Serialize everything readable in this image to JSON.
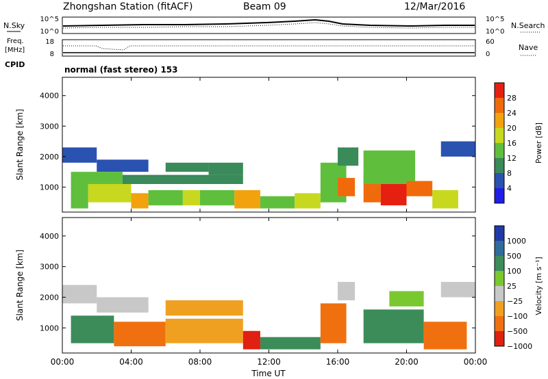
{
  "header": {
    "title": "Zhongshan Station (fitACF)",
    "beam": "Beam 09",
    "date": "12/Mar/2016",
    "cpid_label": "CPID",
    "cpid_value": "normal (fast stereo) 153"
  },
  "top_panels": {
    "nsky_label": "N.Sky",
    "nsky_ticks": [
      "10^5",
      "10^0"
    ],
    "nsearch_label": "N.Search",
    "nsearch_ticks": [
      "10^5",
      "10^0"
    ],
    "freq_label_line1": "Freq.",
    "freq_label_line2": "[MHz]",
    "freq_ticks": [
      "18",
      "8"
    ],
    "nave_label": "Nave",
    "nave_ticks": [
      "60",
      "0"
    ]
  },
  "colors": {
    "power": [
      "#1f1fe6",
      "#2a52b0",
      "#3a8a5a",
      "#5fbf3c",
      "#c8d81e",
      "#f2a20c",
      "#f06a0c",
      "#e62010"
    ],
    "velocity": [
      "#1f3aa8",
      "#2e6c9a",
      "#3c8c5a",
      "#7ac830",
      "#c8c8c8",
      "#f0a020",
      "#f07010",
      "#e02010"
    ]
  },
  "chart_data": [
    {
      "type": "heatmap",
      "title": "Power",
      "ylabel": "Slant Range [km]",
      "ylim": [
        180,
        4600
      ],
      "yticks": [
        "1000",
        "2000",
        "3000",
        "4000"
      ],
      "xlabel": "",
      "colorbar_label": "Power [dB]",
      "colorbar_ticks": [
        "4",
        "8",
        "12",
        "16",
        "20",
        "24",
        "28"
      ],
      "color_range": [
        0,
        32
      ],
      "cells": [
        {
          "t0": 0.0,
          "t1": 2.0,
          "r0": 1800,
          "r1": 2300,
          "v": 7
        },
        {
          "t0": 2.0,
          "t1": 5.0,
          "r0": 1500,
          "r1": 1900,
          "v": 7
        },
        {
          "t0": 6.0,
          "t1": 8.5,
          "r0": 1500,
          "r1": 1800,
          "v": 8
        },
        {
          "t0": 8.5,
          "t1": 10.5,
          "r0": 1400,
          "r1": 1800,
          "v": 8
        },
        {
          "t0": 0.5,
          "t1": 3.5,
          "r0": 1100,
          "r1": 1500,
          "v": 12
        },
        {
          "t0": 3.5,
          "t1": 10.5,
          "r0": 1100,
          "r1": 1400,
          "v": 11
        },
        {
          "t0": 0.5,
          "t1": 1.5,
          "r0": 300,
          "r1": 1100,
          "v": 13
        },
        {
          "t0": 1.5,
          "t1": 4.0,
          "r0": 500,
          "r1": 1100,
          "v": 17
        },
        {
          "t0": 4.0,
          "t1": 5.0,
          "r0": 300,
          "r1": 800,
          "v": 23
        },
        {
          "t0": 5.0,
          "t1": 7.0,
          "r0": 400,
          "r1": 900,
          "v": 15
        },
        {
          "t0": 7.0,
          "t1": 8.0,
          "r0": 400,
          "r1": 900,
          "v": 19
        },
        {
          "t0": 8.0,
          "t1": 10.0,
          "r0": 400,
          "r1": 900,
          "v": 13
        },
        {
          "t0": 10.0,
          "t1": 11.5,
          "r0": 300,
          "r1": 900,
          "v": 22
        },
        {
          "t0": 11.5,
          "t1": 13.5,
          "r0": 300,
          "r1": 700,
          "v": 12
        },
        {
          "t0": 13.5,
          "t1": 15.0,
          "r0": 300,
          "r1": 800,
          "v": 16
        },
        {
          "t0": 15.0,
          "t1": 16.5,
          "r0": 500,
          "r1": 1800,
          "v": 14
        },
        {
          "t0": 16.0,
          "t1": 17.0,
          "r0": 700,
          "r1": 1300,
          "v": 27
        },
        {
          "t0": 16.0,
          "t1": 17.2,
          "r0": 1700,
          "r1": 2300,
          "v": 9
        },
        {
          "t0": 17.5,
          "t1": 18.5,
          "r0": 500,
          "r1": 1400,
          "v": 26
        },
        {
          "t0": 18.5,
          "t1": 20.0,
          "r0": 400,
          "r1": 1100,
          "v": 28
        },
        {
          "t0": 17.5,
          "t1": 20.5,
          "r0": 1100,
          "r1": 2200,
          "v": 15
        },
        {
          "t0": 20.0,
          "t1": 21.5,
          "r0": 700,
          "r1": 1200,
          "v": 25
        },
        {
          "t0": 21.5,
          "t1": 23.0,
          "r0": 300,
          "r1": 900,
          "v": 19
        },
        {
          "t0": 22.0,
          "t1": 24.0,
          "r0": 2000,
          "r1": 2500,
          "v": 7
        }
      ]
    },
    {
      "type": "heatmap",
      "title": "Velocity",
      "ylabel": "Slant Range [km]",
      "ylim": [
        180,
        4600
      ],
      "yticks": [
        "1000",
        "2000",
        "3000",
        "4000"
      ],
      "xlabel": "Time UT",
      "xlim": [
        0,
        24
      ],
      "xticks": [
        "00:00",
        "04:00",
        "08:00",
        "12:00",
        "16:00",
        "20:00",
        "00:00"
      ],
      "colorbar_label": "Velocity [m s⁻¹]",
      "colorbar_ticks": [
        "1000",
        "500",
        "100",
        "25",
        "−25",
        "−100",
        "−500",
        "−1000"
      ],
      "cells": [
        {
          "t0": 0.0,
          "t1": 2.0,
          "r0": 1800,
          "r1": 2400,
          "v": 4
        },
        {
          "t0": 2.0,
          "t1": 5.0,
          "r0": 1500,
          "r1": 2000,
          "v": 4
        },
        {
          "t0": 6.0,
          "t1": 10.5,
          "r0": 1400,
          "r1": 1900,
          "v": 5
        },
        {
          "t0": 0.5,
          "t1": 3.0,
          "r0": 500,
          "r1": 1400,
          "v": 2
        },
        {
          "t0": 3.0,
          "t1": 6.0,
          "r0": 400,
          "r1": 1200,
          "v": 6
        },
        {
          "t0": 6.0,
          "t1": 10.5,
          "r0": 500,
          "r1": 1300,
          "v": 5
        },
        {
          "t0": 10.5,
          "t1": 11.5,
          "r0": 300,
          "r1": 900,
          "v": 7
        },
        {
          "t0": 11.5,
          "t1": 15.0,
          "r0": 300,
          "r1": 700,
          "v": 2
        },
        {
          "t0": 15.0,
          "t1": 16.5,
          "r0": 500,
          "r1": 1800,
          "v": 6
        },
        {
          "t0": 16.0,
          "t1": 17.0,
          "r0": 1900,
          "r1": 2500,
          "v": 4
        },
        {
          "t0": 17.5,
          "t1": 21.0,
          "r0": 500,
          "r1": 1600,
          "v": 2
        },
        {
          "t0": 19.0,
          "t1": 21.0,
          "r0": 1700,
          "r1": 2200,
          "v": 3
        },
        {
          "t0": 21.0,
          "t1": 23.5,
          "r0": 300,
          "r1": 1200,
          "v": 6
        },
        {
          "t0": 22.0,
          "t1": 24.0,
          "r0": 2000,
          "r1": 2500,
          "v": 4
        }
      ]
    }
  ]
}
